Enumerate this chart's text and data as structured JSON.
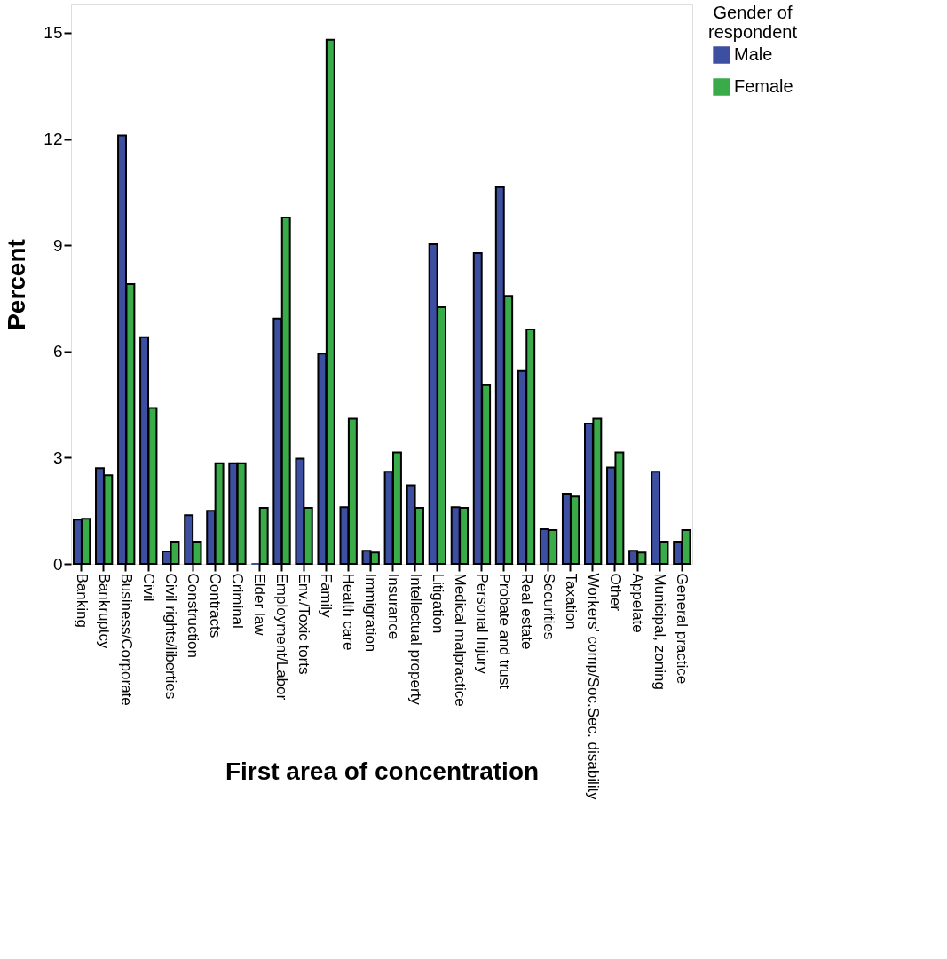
{
  "chart_data": {
    "type": "bar",
    "xlabel": "First area of concentration",
    "ylabel": "Percent",
    "legend_title": "Gender of respondent",
    "legend": "top right",
    "grid": false,
    "categories": [
      "Banking",
      "Bankruptcy",
      "Business/Corporate",
      "Civil",
      "Civil rights/liberties",
      "Construction",
      "Contracts",
      "Criminal",
      "Elder law",
      "Employment/Labor",
      "Env./Toxic torts",
      "Family",
      "Health care",
      "Immigration",
      "Insurance",
      "Intellectual property",
      "Litigation",
      "Medical malpractice",
      "Personal Injury",
      "Probate and trust",
      "Real estate",
      "Securities",
      "Taxation",
      "Workers' comp/Soc.Sec. disability",
      "Other",
      "Appelate",
      "Municipal, zoning",
      "General practice"
    ],
    "series": [
      {
        "name": "Male",
        "color": "#3d4fa1",
        "values": [
          1.25,
          2.7,
          12.1,
          6.4,
          0.35,
          1.37,
          1.5,
          2.84,
          0,
          6.93,
          2.97,
          5.94,
          1.6,
          0.37,
          2.6,
          2.22,
          9.03,
          1.6,
          8.78,
          10.64,
          5.45,
          0.98,
          1.98,
          3.96,
          2.72,
          0.37,
          2.6,
          0.63
        ]
      },
      {
        "name": "Female",
        "color": "#3aab49",
        "values": [
          1.27,
          2.5,
          7.9,
          4.4,
          0.63,
          0.63,
          2.84,
          2.84,
          1.58,
          9.78,
          1.58,
          14.8,
          4.1,
          0.32,
          3.15,
          1.58,
          7.25,
          1.58,
          5.05,
          7.57,
          6.62,
          0.95,
          1.9,
          4.1,
          3.15,
          0.32,
          0.63,
          0.95
        ]
      }
    ],
    "ylim": [
      0,
      15.8
    ],
    "yticks": [
      0,
      3,
      6,
      9,
      12,
      15
    ]
  }
}
